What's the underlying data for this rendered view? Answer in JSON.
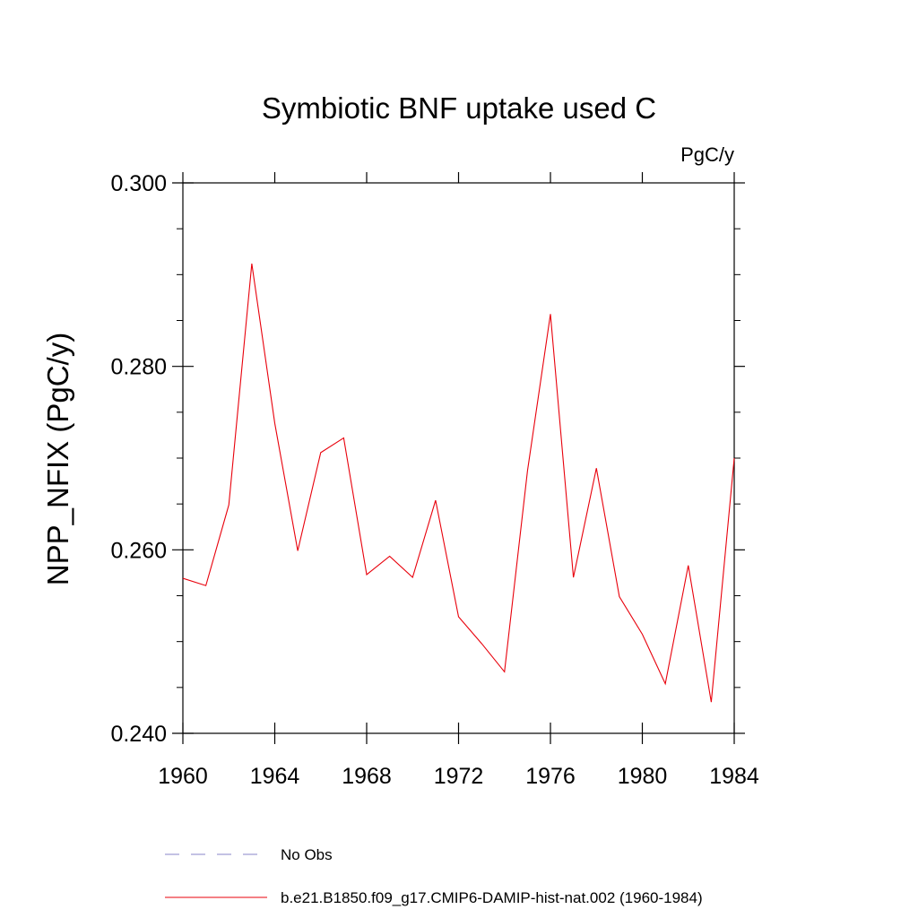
{
  "chart_data": {
    "type": "line",
    "title": "Symbiotic BNF uptake used C",
    "units_label": "PgC/y",
    "ylabel": "NPP_NFIX  (PgC/y)",
    "xlabel": "",
    "xlim": [
      1960,
      1984
    ],
    "ylim": [
      0.24,
      0.3
    ],
    "x_ticks": [
      1960,
      1964,
      1968,
      1972,
      1976,
      1980,
      1984
    ],
    "x_tick_labels": [
      "1960",
      "1964",
      "1968",
      "1972",
      "1976",
      "1980",
      "1984"
    ],
    "y_ticks": [
      0.24,
      0.26,
      0.28,
      0.3
    ],
    "y_tick_labels": [
      "0.240",
      "0.260",
      "0.280",
      "0.300"
    ],
    "grid": false,
    "legend_position": "bottom",
    "series": [
      {
        "name": "b.e21.B1850.f09_g17.CMIP6-DAMIP-hist-nat.002 (1960-1984)",
        "color": "#e8000b",
        "style": "solid",
        "x": [
          1960,
          1961,
          1962,
          1963,
          1964,
          1965,
          1966,
          1967,
          1968,
          1969,
          1970,
          1971,
          1972,
          1973,
          1974,
          1975,
          1976,
          1977,
          1978,
          1979,
          1980,
          1981,
          1982,
          1983,
          1984
        ],
        "values": [
          0.2569,
          0.2561,
          0.2649,
          0.2912,
          0.2738,
          0.2599,
          0.2706,
          0.2722,
          0.2573,
          0.2593,
          0.257,
          0.2654,
          0.2527,
          0.2498,
          0.2467,
          0.2686,
          0.2857,
          0.257,
          0.2689,
          0.2549,
          0.2508,
          0.2454,
          0.2583,
          0.2434,
          0.27
        ]
      }
    ],
    "legend": [
      {
        "label": "No Obs",
        "color": "#8a86c8",
        "style": "dashed"
      },
      {
        "label": "b.e21.B1850.f09_g17.CMIP6-DAMIP-hist-nat.002 (1960-1984)",
        "color": "#e8000b",
        "style": "solid"
      }
    ]
  }
}
